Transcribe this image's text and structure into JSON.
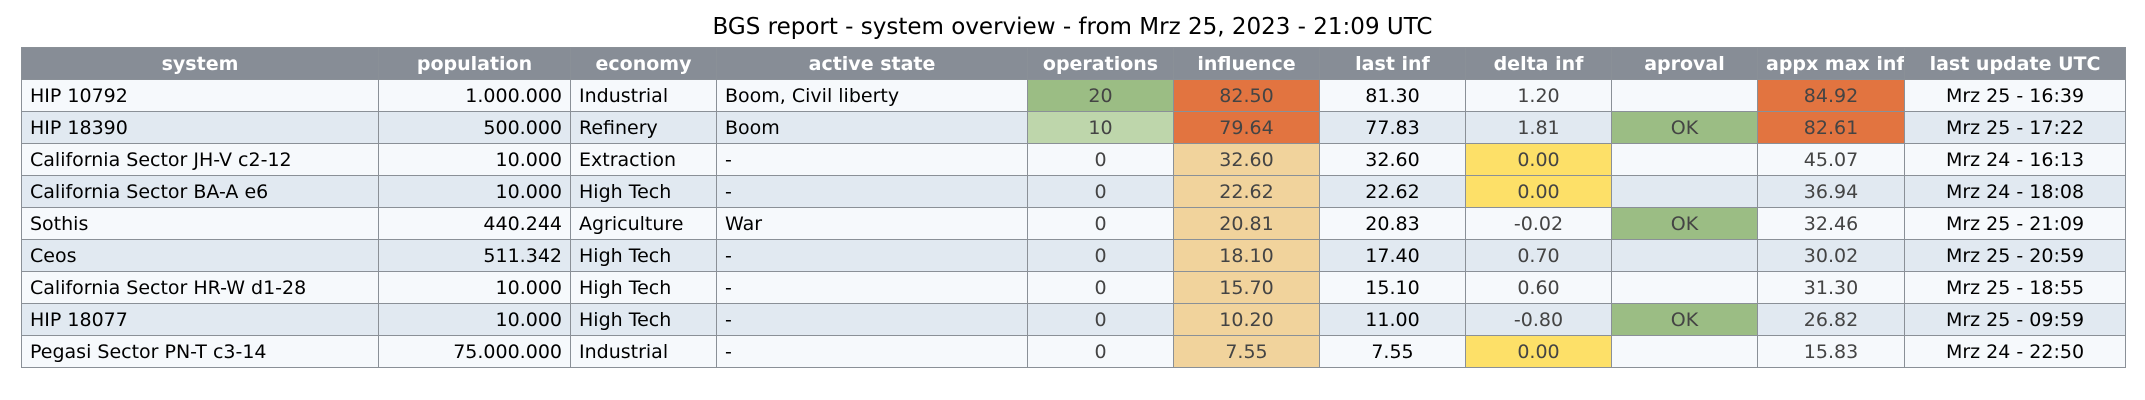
{
  "title": "BGS report - system overview - from Mrz 25, 2023 - 21:09 UTC",
  "colors": {
    "header_bg": "#878d96",
    "row_odd": "#f6f9fc",
    "row_even": "#e1e9f1",
    "ops_strong_green": "#9bbd84",
    "ops_light_green": "#bed6ab",
    "influence_orange": "#e27440",
    "influence_tan": "#f1d39c",
    "delta_yellow": "#fde068",
    "approval_green": "#9bbd84",
    "max_orange": "#e27440"
  },
  "chart_data": {
    "type": "table",
    "title": "BGS report - system overview - from Mrz 25, 2023 - 21:09 UTC",
    "columns": [
      "system",
      "population",
      "economy",
      "active state",
      "operations",
      "influence",
      "last inf",
      "delta inf",
      "aproval",
      "appx max inf",
      "last update UTC"
    ],
    "rows": [
      {
        "system": "HIP 10792",
        "population": "1.000.000",
        "economy": "Industrial",
        "state": "Boom, Civil liberty",
        "operations": "20",
        "influence": "82.50",
        "last_inf": "81.30",
        "delta_inf": "1.20",
        "aproval": "",
        "max_inf": "84.92",
        "last_update": "Mrz 25 - 16:39",
        "ops_color": "#9bbd84",
        "inf_color": "#e27440",
        "delta_color": "",
        "aproval_color": "",
        "max_color": "#e27440"
      },
      {
        "system": "HIP 18390",
        "population": "500.000",
        "economy": "Refinery",
        "state": "Boom",
        "operations": "10",
        "influence": "79.64",
        "last_inf": "77.83",
        "delta_inf": "1.81",
        "aproval": "OK",
        "max_inf": "82.61",
        "last_update": "Mrz 25 - 17:22",
        "ops_color": "#bed6ab",
        "inf_color": "#e27440",
        "delta_color": "",
        "aproval_color": "#9bbd84",
        "max_color": "#e27440"
      },
      {
        "system": "California Sector JH-V c2-12",
        "population": "10.000",
        "economy": "Extraction",
        "state": "-",
        "operations": "0",
        "influence": "32.60",
        "last_inf": "32.60",
        "delta_inf": "0.00",
        "aproval": "",
        "max_inf": "45.07",
        "last_update": "Mrz 24 - 16:13",
        "ops_color": "",
        "inf_color": "#f1d39c",
        "delta_color": "#fde068",
        "aproval_color": "",
        "max_color": ""
      },
      {
        "system": "California Sector BA-A e6",
        "population": "10.000",
        "economy": "High Tech",
        "state": "-",
        "operations": "0",
        "influence": "22.62",
        "last_inf": "22.62",
        "delta_inf": "0.00",
        "aproval": "",
        "max_inf": "36.94",
        "last_update": "Mrz 24 - 18:08",
        "ops_color": "",
        "inf_color": "#f1d39c",
        "delta_color": "#fde068",
        "aproval_color": "",
        "max_color": ""
      },
      {
        "system": "Sothis",
        "population": "440.244",
        "economy": "Agriculture",
        "state": "War",
        "operations": "0",
        "influence": "20.81",
        "last_inf": "20.83",
        "delta_inf": "-0.02",
        "aproval": "OK",
        "max_inf": "32.46",
        "last_update": "Mrz 25 - 21:09",
        "ops_color": "",
        "inf_color": "#f1d39c",
        "delta_color": "",
        "aproval_color": "#9bbd84",
        "max_color": ""
      },
      {
        "system": "Ceos",
        "population": "511.342",
        "economy": "High Tech",
        "state": "-",
        "operations": "0",
        "influence": "18.10",
        "last_inf": "17.40",
        "delta_inf": "0.70",
        "aproval": "",
        "max_inf": "30.02",
        "last_update": "Mrz 25 - 20:59",
        "ops_color": "",
        "inf_color": "#f1d39c",
        "delta_color": "",
        "aproval_color": "",
        "max_color": ""
      },
      {
        "system": "California Sector HR-W d1-28",
        "population": "10.000",
        "economy": "High Tech",
        "state": "-",
        "operations": "0",
        "influence": "15.70",
        "last_inf": "15.10",
        "delta_inf": "0.60",
        "aproval": "",
        "max_inf": "31.30",
        "last_update": "Mrz 25 - 18:55",
        "ops_color": "",
        "inf_color": "#f1d39c",
        "delta_color": "",
        "aproval_color": "",
        "max_color": ""
      },
      {
        "system": "HIP 18077",
        "population": "10.000",
        "economy": "High Tech",
        "state": "-",
        "operations": "0",
        "influence": "10.20",
        "last_inf": "11.00",
        "delta_inf": "-0.80",
        "aproval": "OK",
        "max_inf": "26.82",
        "last_update": "Mrz 25 - 09:59",
        "ops_color": "",
        "inf_color": "#f1d39c",
        "delta_color": "",
        "aproval_color": "#9bbd84",
        "max_color": ""
      },
      {
        "system": "Pegasi Sector PN-T c3-14",
        "population": "75.000.000",
        "economy": "Industrial",
        "state": "-",
        "operations": "0",
        "influence": "7.55",
        "last_inf": "7.55",
        "delta_inf": "0.00",
        "aproval": "",
        "max_inf": "15.83",
        "last_update": "Mrz 24 - 22:50",
        "ops_color": "",
        "inf_color": "#f1d39c",
        "delta_color": "#fde068",
        "aproval_color": "",
        "max_color": ""
      }
    ]
  }
}
